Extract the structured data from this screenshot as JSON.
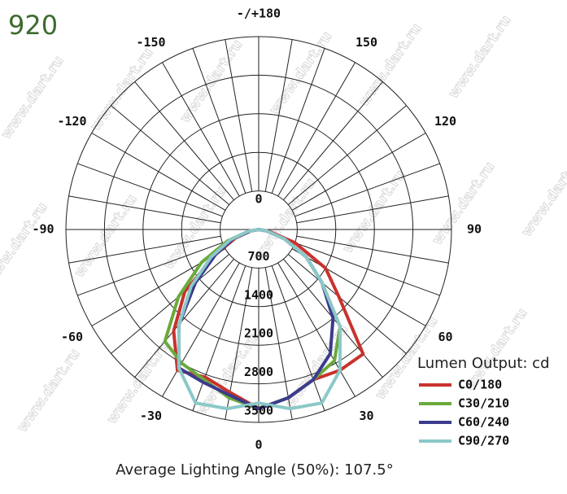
{
  "chart_data": {
    "type": "polar-line",
    "title": "920",
    "subtitle": "Average Lighting Angle (50%): 107.5°",
    "legend_title": "Lumen Output: cd",
    "watermark": "www.dart.ru",
    "theta": [
      -90,
      -80,
      -70,
      -60,
      -50,
      -40,
      -30,
      -20,
      -10,
      0,
      10,
      20,
      30,
      40,
      50,
      60,
      70,
      80,
      90
    ],
    "series": [
      {
        "name": "C0/180",
        "color": "#c8322d",
        "values": [
          0,
          150,
          450,
          900,
          1750,
          2400,
          2950,
          2850,
          3000,
          3250,
          3100,
          2900,
          2950,
          2950,
          1900,
          1400,
          700,
          200,
          0
        ]
      },
      {
        "name": "C30/210",
        "color": "#6aaa3a",
        "values": [
          0,
          200,
          600,
          1200,
          1900,
          2650,
          2800,
          2900,
          3100,
          3250,
          3100,
          2900,
          2750,
          2300,
          1500,
          1000,
          500,
          150,
          0
        ]
      },
      {
        "name": "C60/240",
        "color": "#3b3b8e",
        "values": [
          0,
          150,
          500,
          900,
          1500,
          2250,
          2900,
          2950,
          3050,
          3250,
          3100,
          2900,
          2600,
          2100,
          1500,
          1000,
          500,
          150,
          0
        ]
      },
      {
        "name": "C90/270",
        "color": "#8cc8c8",
        "values": [
          0,
          200,
          550,
          1000,
          1600,
          2250,
          2900,
          3350,
          3300,
          3150,
          3300,
          3350,
          2950,
          2300,
          1500,
          1000,
          500,
          150,
          0
        ]
      }
    ],
    "rlim": [
      0,
      3500
    ],
    "rticks": [
      0,
      700,
      1400,
      2100,
      2800,
      3500
    ],
    "thetaticks": [
      {
        "value": 180,
        "label": "-/+180"
      },
      -150,
      -120,
      -90,
      -60,
      -30,
      0,
      30,
      60,
      90,
      120,
      150
    ],
    "thetagrid": [
      -180,
      -170,
      -160,
      -150,
      -140,
      -130,
      -120,
      -110,
      -100,
      -90,
      -80,
      -70,
      -60,
      -50,
      -40,
      -30,
      -20,
      -10,
      0,
      10,
      20,
      30,
      40,
      50,
      60,
      70,
      80,
      90,
      100,
      110,
      120,
      130,
      140,
      150,
      160,
      170
    ]
  }
}
